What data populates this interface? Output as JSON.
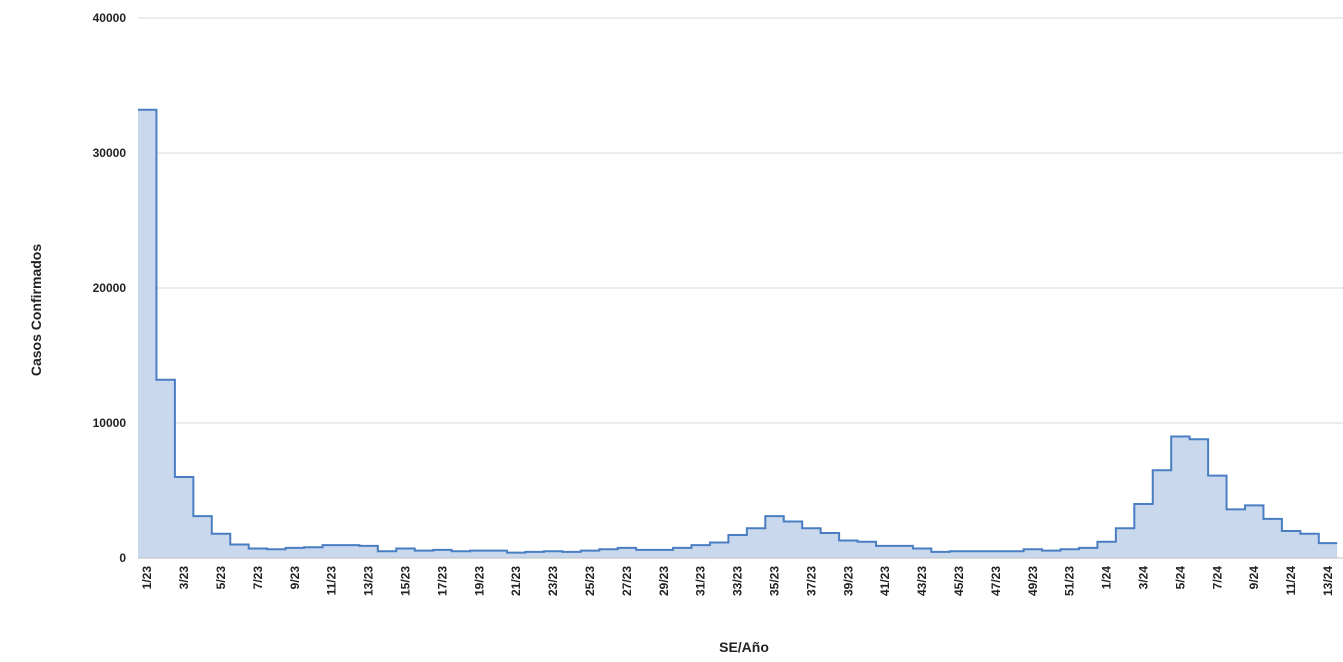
{
  "chart_data": {
    "type": "area",
    "step": true,
    "xlabel": "SE/Año",
    "ylabel": "Casos Confirmados",
    "ylim": [
      0,
      40000
    ],
    "y_ticks": [
      0,
      10000,
      20000,
      30000,
      40000
    ],
    "grid": "horizontal",
    "fill_color": "#c9d8ec",
    "line_color": "#4a7ec2",
    "grid_color": "#d9d9d9",
    "categories": [
      "1/23",
      "2/23",
      "3/23",
      "4/23",
      "5/23",
      "6/23",
      "7/23",
      "8/23",
      "9/23",
      "10/23",
      "11/23",
      "12/23",
      "13/23",
      "14/23",
      "15/23",
      "16/23",
      "17/23",
      "18/23",
      "19/23",
      "20/23",
      "21/23",
      "22/23",
      "23/23",
      "24/23",
      "25/23",
      "26/23",
      "27/23",
      "28/23",
      "29/23",
      "30/23",
      "31/23",
      "32/23",
      "33/23",
      "34/23",
      "35/23",
      "36/23",
      "37/23",
      "38/23",
      "39/23",
      "40/23",
      "41/23",
      "42/23",
      "43/23",
      "44/23",
      "45/23",
      "46/23",
      "47/23",
      "48/23",
      "49/23",
      "50/23",
      "51/23",
      "52/23",
      "1/24",
      "2/24",
      "3/24",
      "4/24",
      "5/24",
      "6/24",
      "7/24",
      "8/24",
      "9/24",
      "10/24",
      "11/24",
      "12/24",
      "13/24"
    ],
    "tick_labels": [
      "1/23",
      "3/23",
      "5/23",
      "7/23",
      "9/23",
      "11/23",
      "13/23",
      "15/23",
      "17/23",
      "19/23",
      "21/23",
      "23/23",
      "25/23",
      "27/23",
      "29/23",
      "31/23",
      "33/23",
      "35/23",
      "37/23",
      "39/23",
      "41/23",
      "43/23",
      "45/23",
      "47/23",
      "49/23",
      "51/23",
      "1/24",
      "3/24",
      "5/24",
      "7/24",
      "9/24",
      "11/24",
      "13/24"
    ],
    "series": [
      {
        "values": [
          33200,
          13200,
          6000,
          3100,
          1800,
          1000,
          700,
          650,
          750,
          800,
          950,
          950,
          900,
          500,
          700,
          550,
          600,
          500,
          550,
          550,
          400,
          450,
          500,
          450,
          550,
          650,
          750,
          600,
          600,
          750,
          950,
          1150,
          1700,
          2200,
          3100,
          2700,
          2200,
          1850,
          1300,
          1200,
          900,
          900,
          700,
          450,
          500,
          500,
          500,
          500,
          650,
          550,
          650,
          750,
          1200,
          2200,
          4000,
          6500,
          9000,
          8800,
          6100,
          3600,
          3900,
          2900,
          2000,
          1800,
          1100
        ]
      }
    ]
  }
}
